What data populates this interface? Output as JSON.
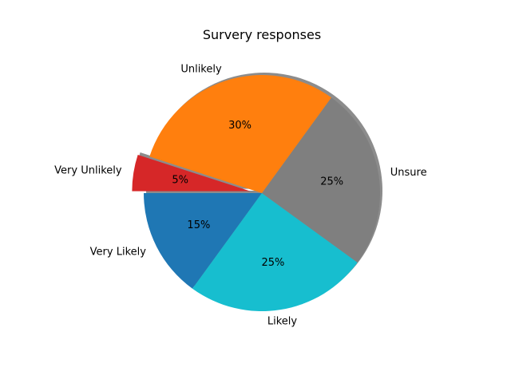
{
  "chart_data": {
    "type": "pie",
    "title": "Survery responses",
    "categories": [
      "Very Likely",
      "Likely",
      "Unsure",
      "Unlikely",
      "Very Unlikely"
    ],
    "values": [
      15,
      25,
      25,
      30,
      5
    ],
    "value_labels": [
      "15%",
      "25%",
      "25%",
      "30%",
      "5%"
    ],
    "colors": [
      "#1f77b4",
      "#17becf",
      "#7f7f7f",
      "#ff7f0e",
      "#d62728"
    ],
    "exploded": [
      false,
      false,
      false,
      false,
      true
    ],
    "shadow": true,
    "start_angle_deg": 180,
    "direction": "counterclockwise",
    "legend": "none"
  }
}
